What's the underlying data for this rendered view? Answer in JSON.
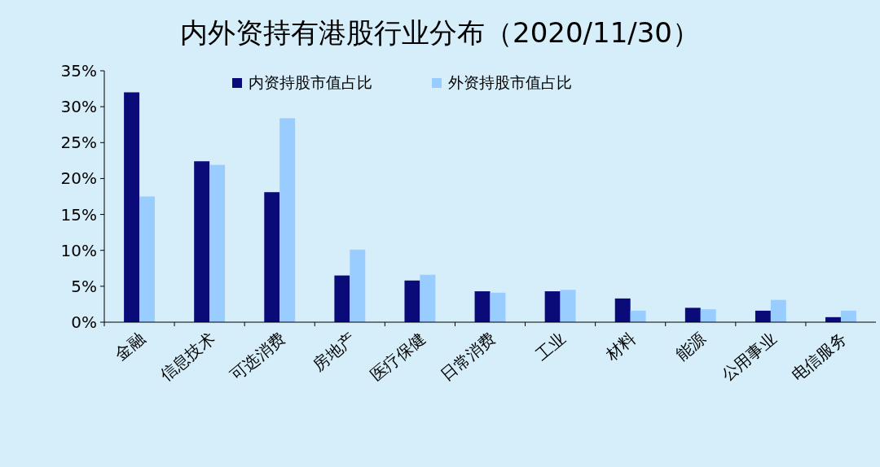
{
  "chart_data": {
    "type": "bar",
    "title": "内外资持有港股行业分布（2020/11/30）",
    "categories": [
      "金融",
      "信息技术",
      "可选消费",
      "房地产",
      "医疗保健",
      "日常消费",
      "工业",
      "材料",
      "能源",
      "公用事业",
      "电信服务"
    ],
    "series": [
      {
        "name": "内资持股市值占比",
        "color": "#0a0a78",
        "values": [
          32.0,
          22.4,
          18.1,
          6.5,
          5.8,
          4.3,
          4.3,
          3.3,
          2.0,
          1.6,
          0.7
        ]
      },
      {
        "name": "外资持股市值占比",
        "color": "#99ccff",
        "values": [
          17.5,
          21.9,
          28.4,
          10.1,
          6.6,
          4.1,
          4.5,
          1.6,
          1.8,
          3.1,
          1.6
        ]
      }
    ],
    "ylim": [
      0,
      35
    ],
    "yticks": [
      {
        "value": 0,
        "label": "0%"
      },
      {
        "value": 5,
        "label": "5%"
      },
      {
        "value": 10,
        "label": "10%"
      },
      {
        "value": 15,
        "label": "15%"
      },
      {
        "value": 20,
        "label": "20%"
      },
      {
        "value": 25,
        "label": "25%"
      },
      {
        "value": 30,
        "label": "30%"
      },
      {
        "value": 35,
        "label": "35%"
      }
    ],
    "grid": false,
    "legend": "top"
  }
}
